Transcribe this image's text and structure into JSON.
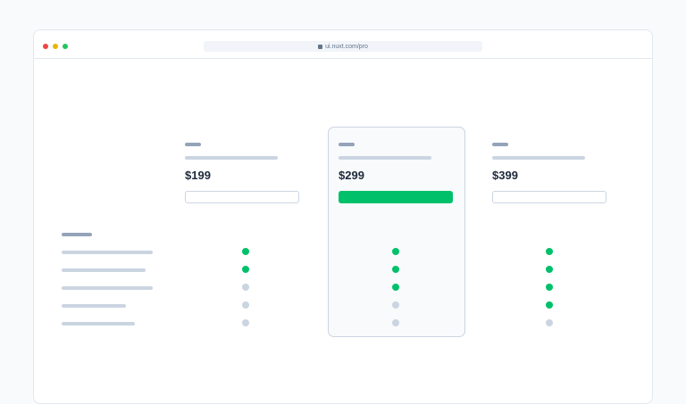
{
  "browser": {
    "url": "ui.nuxt.com/pro",
    "dots": [
      "#ef4444",
      "#eab308",
      "#22c55e"
    ]
  },
  "colors": {
    "accent": "#00c16a",
    "muted": "#cbd5e1"
  },
  "plans": [
    {
      "price": "$199",
      "highlighted": false,
      "features": [
        true,
        true,
        false,
        false,
        false
      ]
    },
    {
      "price": "$299",
      "highlighted": true,
      "features": [
        true,
        true,
        true,
        false,
        false
      ]
    },
    {
      "price": "$399",
      "highlighted": false,
      "features": [
        true,
        true,
        true,
        true,
        false
      ]
    }
  ],
  "feature_count": 5
}
